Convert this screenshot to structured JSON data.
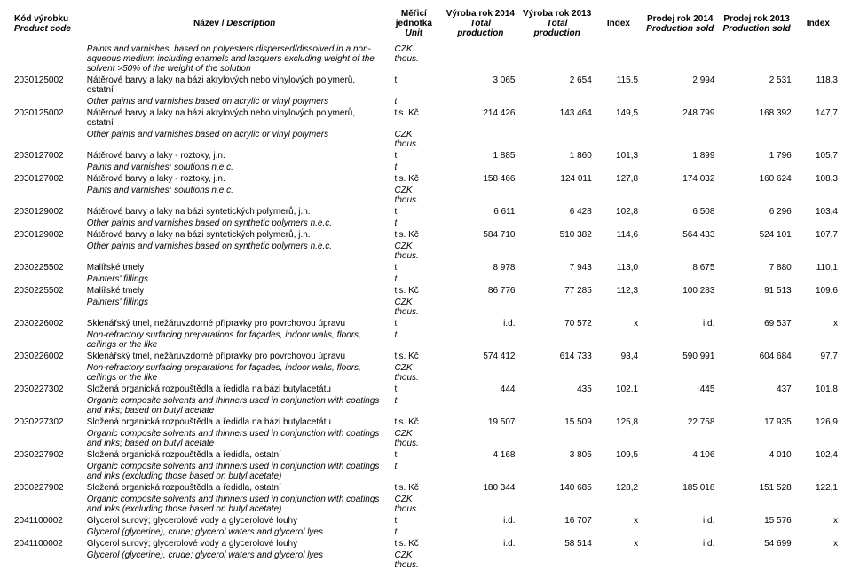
{
  "header": {
    "code": {
      "cz": "Kód výrobku",
      "en": "Product code"
    },
    "name": {
      "cz": "Název /",
      "en": "Description"
    },
    "unit": {
      "cz": "Měřicí",
      "cz2": "jednotka",
      "en": "Unit"
    },
    "prod2014": {
      "l1": "Výroba  rok 2014",
      "l2": "Total production"
    },
    "prod2013": {
      "l1": "Výroba  rok 2013",
      "l2": "Total production"
    },
    "idx1": "Index",
    "sold2014": {
      "l1": "Prodej rok 2014",
      "l2": "Production sold"
    },
    "sold2013": {
      "l1": "Prodej rok 2013",
      "l2": "Production sold"
    },
    "idx2": "Index"
  },
  "rows": [
    {
      "t": "desc_it",
      "name": "Paints and varnishes, based on polyesters dispersed/dissolved in a non-aqueous medium including enamels and lacquers excluding weight of the solvent >50% of the weight of the solution",
      "unit": "CZK thous."
    },
    {
      "t": "data",
      "code": "2030125002",
      "name": "Nátěrové barvy a laky na bázi akrylových nebo vinylových polymerů, ostatní",
      "unit": "t",
      "v": [
        "3 065",
        "2 654",
        "115,5",
        "2 994",
        "2 531",
        "118,3"
      ]
    },
    {
      "t": "desc_it",
      "name": "Other paints and varnishes based on acrylic or vinyl polymers",
      "unit": "t"
    },
    {
      "t": "data",
      "code": "2030125002",
      "name": "Nátěrové barvy a laky na bázi akrylových nebo vinylových polymerů, ostatní",
      "unit": "tis. Kč",
      "v": [
        "214 426",
        "143 464",
        "149,5",
        "248 799",
        "168 392",
        "147,7"
      ]
    },
    {
      "t": "desc_it",
      "name": "Other paints and varnishes based on acrylic or vinyl polymers",
      "unit": "CZK thous."
    },
    {
      "t": "data",
      "code": "2030127002",
      "name": "Nátěrové barvy a laky - roztoky, j.n.",
      "unit": "t",
      "v": [
        "1 885",
        "1 860",
        "101,3",
        "1 899",
        "1 796",
        "105,7"
      ]
    },
    {
      "t": "desc_it",
      "name": "Paints and varnishes: solutions n.e.c.",
      "unit": "t"
    },
    {
      "t": "data",
      "code": "2030127002",
      "name": "Nátěrové barvy a laky - roztoky, j.n.",
      "unit": "tis. Kč",
      "v": [
        "158 466",
        "124 011",
        "127,8",
        "174 032",
        "160 624",
        "108,3"
      ]
    },
    {
      "t": "desc_it",
      "name": "Paints and varnishes: solutions n.e.c.",
      "unit": "CZK thous."
    },
    {
      "t": "data",
      "code": "2030129002",
      "name": "Nátěrové barvy a laky na bázi syntetických polymerů, j.n.",
      "unit": "t",
      "v": [
        "6 611",
        "6 428",
        "102,8",
        "6 508",
        "6 296",
        "103,4"
      ]
    },
    {
      "t": "desc_it",
      "name": "Other paints and varnishes based on synthetic polymers n.e.c.",
      "unit": "t"
    },
    {
      "t": "data",
      "code": "2030129002",
      "name": "Nátěrové barvy a laky na bázi syntetických polymerů, j.n.",
      "unit": "tis. Kč",
      "v": [
        "584 710",
        "510 382",
        "114,6",
        "564 433",
        "524 101",
        "107,7"
      ]
    },
    {
      "t": "desc_it",
      "name": "Other paints and varnishes based on synthetic polymers n.e.c.",
      "unit": "CZK thous."
    },
    {
      "t": "data",
      "code": "2030225502",
      "name": "Malířské tmely",
      "unit": "t",
      "v": [
        "8 978",
        "7 943",
        "113,0",
        "8 675",
        "7 880",
        "110,1"
      ]
    },
    {
      "t": "desc_it",
      "name": "Painters' fillings",
      "unit": "t"
    },
    {
      "t": "data",
      "code": "2030225502",
      "name": "Malířské tmely",
      "unit": "tis. Kč",
      "v": [
        "86 776",
        "77 285",
        "112,3",
        "100 283",
        "91 513",
        "109,6"
      ]
    },
    {
      "t": "desc_it",
      "name": "Painters' fillings",
      "unit": "CZK thous."
    },
    {
      "t": "data",
      "code": "2030226002",
      "name": "Sklenářský tmel, nežáruvzdorné přípravky pro povrchovou úpravu",
      "unit": "t",
      "v": [
        "i.d.",
        "70 572",
        "x",
        "i.d.",
        "69 537",
        "x"
      ]
    },
    {
      "t": "desc_it",
      "name": "Non-refractory surfacing preparations for façades, indoor walls, floors, ceilings or the like",
      "unit": "t"
    },
    {
      "t": "data",
      "code": "2030226002",
      "name": "Sklenářský tmel, nežáruvzdorné přípravky pro povrchovou úpravu",
      "unit": "tis. Kč",
      "v": [
        "574 412",
        "614 733",
        "93,4",
        "590 991",
        "604 684",
        "97,7"
      ]
    },
    {
      "t": "desc_it",
      "name": "Non-refractory surfacing preparations for façades, indoor walls, floors, ceilings or the like",
      "unit": "CZK thous."
    },
    {
      "t": "data",
      "code": "2030227302",
      "name": "Složená organická rozpouštědla a ředidla na bázi butylacetátu",
      "unit": "t",
      "v": [
        "444",
        "435",
        "102,1",
        "445",
        "437",
        "101,8"
      ]
    },
    {
      "t": "desc_it",
      "name": "Organic composite solvents and thinners used in conjunction with coatings and inks; based on butyl acetate",
      "unit": "t"
    },
    {
      "t": "data",
      "code": "2030227302",
      "name": "Složená organická rozpouštědla a ředidla na bázi butylacetátu",
      "unit": "tis. Kč",
      "v": [
        "19 507",
        "15 509",
        "125,8",
        "22 758",
        "17 935",
        "126,9"
      ]
    },
    {
      "t": "desc_it",
      "name": "Organic composite solvents and thinners used in conjunction with coatings and inks; based on butyl acetate",
      "unit": "CZK thous."
    },
    {
      "t": "data",
      "code": "2030227902",
      "name": "Složená organická rozpouštědla a ředidla, ostatní",
      "unit": "t",
      "v": [
        "4 168",
        "3 805",
        "109,5",
        "4 106",
        "4 010",
        "102,4"
      ]
    },
    {
      "t": "desc_it",
      "name": "Organic composite solvents and thinners used in conjunction with coatings and inks (excluding those based on butyl acetate)",
      "unit": "t"
    },
    {
      "t": "data",
      "code": "2030227902",
      "name": "Složená organická rozpouštědla a ředidla, ostatní",
      "unit": "tis. Kč",
      "v": [
        "180 344",
        "140 685",
        "128,2",
        "185 018",
        "151 528",
        "122,1"
      ]
    },
    {
      "t": "desc_it",
      "name": "Organic composite solvents and thinners used in conjunction with coatings and inks (excluding those based on butyl acetate)",
      "unit": "CZK thous."
    },
    {
      "t": "data",
      "code": "2041100002",
      "name": "Glycerol surový; glycerolové vody a glycerolové louhy",
      "unit": "t",
      "v": [
        "i.d.",
        "16 707",
        "x",
        "i.d.",
        "15 576",
        "x"
      ]
    },
    {
      "t": "desc_it",
      "name": "Glycerol (glycerine), crude; glycerol waters and glycerol lyes",
      "unit": "t"
    },
    {
      "t": "data",
      "code": "2041100002",
      "name": "Glycerol surový; glycerolové vody a glycerolové louhy",
      "unit": "tis. Kč",
      "v": [
        "i.d.",
        "58 514",
        "x",
        "i.d.",
        "54 699",
        "x"
      ]
    },
    {
      "t": "desc_it",
      "name": "Glycerol (glycerine), crude; glycerol waters and glycerol lyes",
      "unit": "CZK thous."
    }
  ]
}
